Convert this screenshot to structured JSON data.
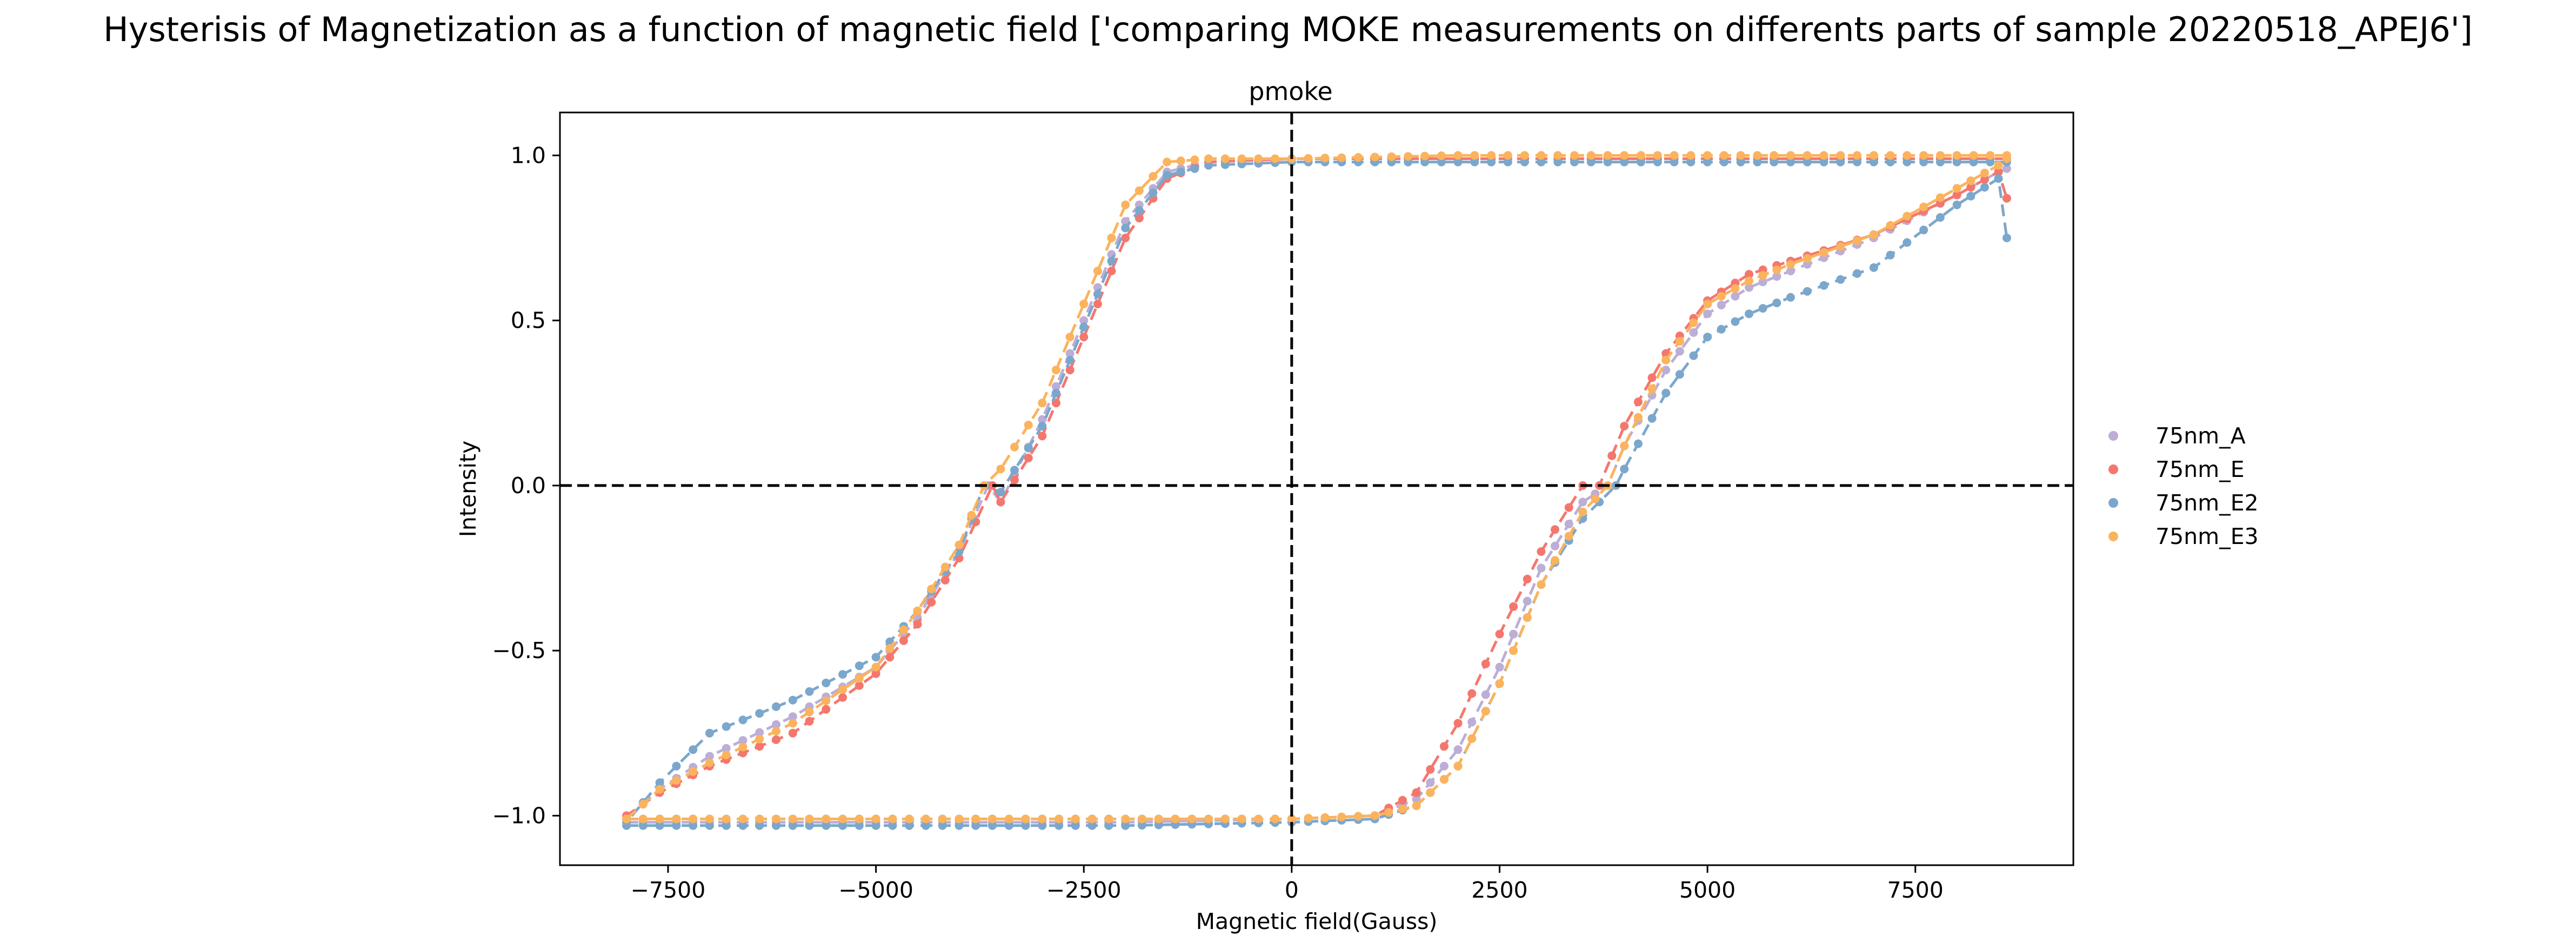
{
  "figure_title": "Hysterisis of Magnetization as a function of magnetic field ['comparing MOKE measurements on differents parts of sample 20220518_APEJ6']",
  "chart_data": {
    "type": "line",
    "title": "pmoke",
    "xlabel": "Magnetic field(Gauss)",
    "ylabel": "Intensity",
    "xlim": [
      -8800,
      9400
    ],
    "ylim": [
      -1.15,
      1.13
    ],
    "xticks": [
      -7500,
      -5000,
      -2500,
      0,
      2500,
      5000,
      7500
    ],
    "xtick_labels": [
      "−7500",
      "−5000",
      "−2500",
      "0",
      "2500",
      "5000",
      "7500"
    ],
    "yticks": [
      -1.0,
      -0.5,
      0.0,
      0.5,
      1.0
    ],
    "ytick_labels": [
      "−1.0",
      "−0.5",
      "0.0",
      "0.5",
      "1.0"
    ],
    "reference_lines": [
      {
        "axis": "x",
        "value": 0,
        "style": "dashed",
        "color": "#000000"
      },
      {
        "axis": "y",
        "value": 0,
        "style": "dashed",
        "color": "#000000"
      }
    ],
    "grid": false,
    "legend_position": "right",
    "line_style": "dashed with circle markers",
    "series": [
      {
        "name": "75nm_A",
        "color": "#bcaed6",
        "branches": [
          {
            "x": [
              8600,
              8000,
              7000,
              6000,
              5000,
              2000,
              0,
              -1000,
              -1500,
              -2000,
              -2500,
              -3000,
              -3500,
              -3650,
              -4000,
              -4500,
              -5000,
              -6000,
              -7000,
              -7600,
              -8000
            ],
            "y": [
              0.99,
              0.99,
              0.99,
              0.99,
              0.99,
              0.99,
              0.99,
              0.98,
              0.95,
              0.8,
              0.5,
              0.2,
              -0.05,
              0.0,
              -0.2,
              -0.4,
              -0.55,
              -0.7,
              -0.82,
              -0.92,
              -1.01
            ]
          },
          {
            "x": [
              -8000,
              -7000,
              -5000,
              -2000,
              0,
              1000,
              1500,
              2000,
              2500,
              3000,
              3500,
              3800,
              4000,
              4500,
              5000,
              5500,
              6000,
              7000,
              8000,
              8500,
              8600
            ],
            "y": [
              -1.02,
              -1.02,
              -1.02,
              -1.02,
              -1.01,
              -1.0,
              -0.95,
              -0.8,
              -0.55,
              -0.25,
              -0.05,
              0.0,
              0.12,
              0.35,
              0.52,
              0.6,
              0.65,
              0.75,
              0.88,
              0.95,
              0.96
            ]
          }
        ]
      },
      {
        "name": "75nm_E",
        "color": "#f4776e",
        "branches": [
          {
            "x": [
              8600,
              8000,
              7000,
              6000,
              5000,
              2000,
              0,
              -1000,
              -1500,
              -2000,
              -2500,
              -3000,
              -3500,
              -3600,
              -4000,
              -4500,
              -5000,
              -6000,
              -7000,
              -7600,
              -8000
            ],
            "y": [
              0.99,
              0.99,
              0.99,
              0.99,
              0.99,
              0.99,
              0.99,
              0.98,
              0.93,
              0.75,
              0.45,
              0.15,
              -0.05,
              0.0,
              -0.22,
              -0.42,
              -0.57,
              -0.75,
              -0.85,
              -0.93,
              -1.0
            ]
          },
          {
            "x": [
              -8000,
              -7000,
              -5000,
              -2000,
              0,
              1000,
              1500,
              2000,
              2500,
              3000,
              3500,
              3700,
              4000,
              4500,
              5000,
              5500,
              6000,
              7000,
              8000,
              8500,
              8600
            ],
            "y": [
              -1.01,
              -1.01,
              -1.01,
              -1.01,
              -1.01,
              -1.0,
              -0.93,
              -0.72,
              -0.45,
              -0.2,
              0.0,
              0.0,
              0.18,
              0.4,
              0.56,
              0.64,
              0.68,
              0.76,
              0.88,
              0.95,
              0.87
            ]
          }
        ]
      },
      {
        "name": "75nm_E2",
        "color": "#7ba7cc",
        "branches": [
          {
            "x": [
              8600,
              8000,
              7000,
              6000,
              5000,
              2000,
              0,
              -1000,
              -1500,
              -2000,
              -2500,
              -3000,
              -3500,
              -3700,
              -4000,
              -4500,
              -5000,
              -6000,
              -7000,
              -7600,
              -8000
            ],
            "y": [
              0.98,
              0.98,
              0.98,
              0.98,
              0.98,
              0.98,
              0.98,
              0.97,
              0.94,
              0.78,
              0.48,
              0.18,
              -0.02,
              0.0,
              -0.2,
              -0.38,
              -0.52,
              -0.65,
              -0.75,
              -0.9,
              -1.02
            ]
          },
          {
            "x": [
              -8000,
              -7000,
              -5000,
              -2000,
              0,
              1000,
              1500,
              2000,
              2500,
              3000,
              3500,
              3900,
              4000,
              4500,
              5000,
              5500,
              6000,
              7000,
              8000,
              8500,
              8600
            ],
            "y": [
              -1.03,
              -1.03,
              -1.03,
              -1.03,
              -1.02,
              -1.01,
              -0.97,
              -0.85,
              -0.6,
              -0.3,
              -0.1,
              0.0,
              0.05,
              0.28,
              0.45,
              0.52,
              0.57,
              0.66,
              0.85,
              0.93,
              0.75
            ]
          }
        ]
      },
      {
        "name": "75nm_E3",
        "color": "#fbb35d",
        "branches": [
          {
            "x": [
              8600,
              8000,
              7000,
              6000,
              5000,
              2000,
              0,
              -1000,
              -1500,
              -2000,
              -2500,
              -3000,
              -3500,
              -3700,
              -4000,
              -4500,
              -5000,
              -6000,
              -7000,
              -7600,
              -8000
            ],
            "y": [
              1.0,
              1.0,
              1.0,
              1.0,
              1.0,
              1.0,
              0.99,
              0.99,
              0.98,
              0.85,
              0.55,
              0.25,
              0.05,
              0.0,
              -0.18,
              -0.38,
              -0.55,
              -0.72,
              -0.84,
              -0.92,
              -1.01
            ]
          },
          {
            "x": [
              -8000,
              -7000,
              -5000,
              -2000,
              0,
              1000,
              1500,
              2000,
              2500,
              3000,
              3500,
              3800,
              4000,
              4500,
              5000,
              5500,
              6000,
              7000,
              8000,
              8500,
              8600
            ],
            "y": [
              -1.01,
              -1.01,
              -1.01,
              -1.01,
              -1.01,
              -1.0,
              -0.97,
              -0.85,
              -0.6,
              -0.3,
              -0.08,
              0.0,
              0.12,
              0.38,
              0.55,
              0.62,
              0.67,
              0.76,
              0.9,
              0.97,
              0.99
            ]
          }
        ]
      }
    ]
  }
}
